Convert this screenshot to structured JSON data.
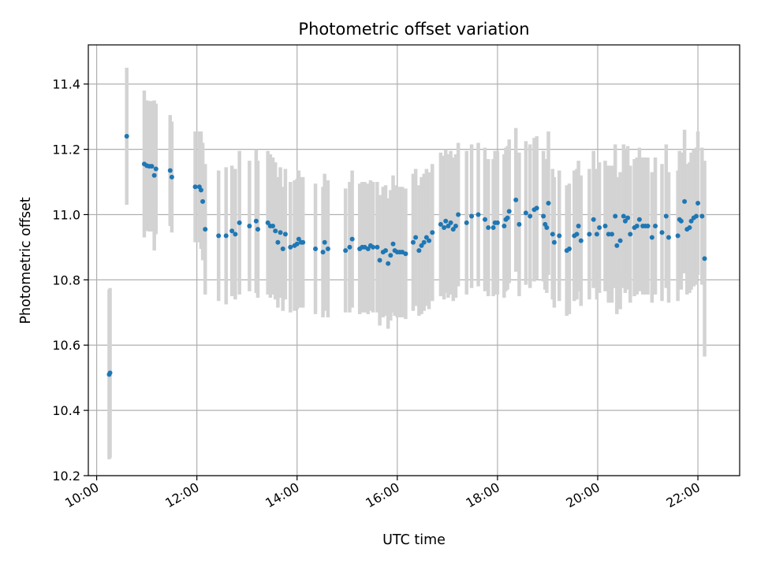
{
  "chart_data": {
    "type": "scatter",
    "title": "Photometric offset variation",
    "xlabel": "UTC time",
    "ylabel": "Photometric offset",
    "x_ticks": [
      "10:00",
      "12:00",
      "14:00",
      "16:00",
      "18:00",
      "20:00",
      "22:00"
    ],
    "y_ticks": [
      "10.2",
      "10.4",
      "10.6",
      "10.8",
      "11.0",
      "11.2",
      "11.4"
    ],
    "xlim": [
      "09:50",
      "22:50"
    ],
    "ylim": [
      10.2,
      11.52
    ],
    "grid": true,
    "marker_color": "#1f77b4",
    "errorbar_color": "#d3d3d3",
    "series": [
      {
        "points": [
          {
            "x": "10:15",
            "y": 10.51,
            "err": 0.26
          },
          {
            "x": "10:16",
            "y": 10.515,
            "err": 0.26
          },
          {
            "x": "10:36",
            "y": 11.24,
            "err": 0.21
          },
          {
            "x": "10:57",
            "y": 11.155,
            "err": 0.225
          },
          {
            "x": "11:00",
            "y": 11.15,
            "err": 0.2
          },
          {
            "x": "11:03",
            "y": 11.148,
            "err": 0.2
          },
          {
            "x": "11:06",
            "y": 11.148,
            "err": 0.2
          },
          {
            "x": "11:09",
            "y": 11.12,
            "err": 0.23
          },
          {
            "x": "11:11",
            "y": 11.14,
            "err": 0.2
          },
          {
            "x": "11:28",
            "y": 11.135,
            "err": 0.17
          },
          {
            "x": "11:30",
            "y": 11.115,
            "err": 0.17
          },
          {
            "x": "11:58",
            "y": 11.085,
            "err": 0.17
          },
          {
            "x": "12:03",
            "y": 11.085,
            "err": 0.17
          },
          {
            "x": "12:05",
            "y": 11.075,
            "err": 0.18
          },
          {
            "x": "12:07",
            "y": 11.04,
            "err": 0.18
          },
          {
            "x": "12:10",
            "y": 10.955,
            "err": 0.2
          },
          {
            "x": "12:26",
            "y": 10.935,
            "err": 0.2
          },
          {
            "x": "12:35",
            "y": 10.935,
            "err": 0.21
          },
          {
            "x": "12:42",
            "y": 10.95,
            "err": 0.2
          },
          {
            "x": "12:46",
            "y": 10.94,
            "err": 0.2
          },
          {
            "x": "12:51",
            "y": 10.975,
            "err": 0.22
          },
          {
            "x": "13:03",
            "y": 10.965,
            "err": 0.2
          },
          {
            "x": "13:11",
            "y": 10.98,
            "err": 0.22
          },
          {
            "x": "13:13",
            "y": 10.955,
            "err": 0.21
          },
          {
            "x": "13:25",
            "y": 10.975,
            "err": 0.22
          },
          {
            "x": "13:28",
            "y": 10.965,
            "err": 0.22
          },
          {
            "x": "13:31",
            "y": 10.965,
            "err": 0.21
          },
          {
            "x": "13:34",
            "y": 10.95,
            "err": 0.21
          },
          {
            "x": "13:37",
            "y": 10.915,
            "err": 0.2
          },
          {
            "x": "13:40",
            "y": 10.945,
            "err": 0.2
          },
          {
            "x": "13:43",
            "y": 10.895,
            "err": 0.19
          },
          {
            "x": "13:46",
            "y": 10.94,
            "err": 0.2
          },
          {
            "x": "13:52",
            "y": 10.9,
            "err": 0.2
          },
          {
            "x": "13:57",
            "y": 10.905,
            "err": 0.2
          },
          {
            "x": "14:00",
            "y": 10.91,
            "err": 0.2
          },
          {
            "x": "14:02",
            "y": 10.925,
            "err": 0.21
          },
          {
            "x": "14:05",
            "y": 10.915,
            "err": 0.2
          },
          {
            "x": "14:07",
            "y": 10.915,
            "err": 0.2
          },
          {
            "x": "14:22",
            "y": 10.895,
            "err": 0.2
          },
          {
            "x": "14:31",
            "y": 10.885,
            "err": 0.2
          },
          {
            "x": "14:33",
            "y": 10.915,
            "err": 0.21
          },
          {
            "x": "14:37",
            "y": 10.895,
            "err": 0.21
          },
          {
            "x": "14:58",
            "y": 10.89,
            "err": 0.19
          },
          {
            "x": "15:03",
            "y": 10.9,
            "err": 0.2
          },
          {
            "x": "15:06",
            "y": 10.925,
            "err": 0.21
          },
          {
            "x": "15:15",
            "y": 10.895,
            "err": 0.2
          },
          {
            "x": "15:18",
            "y": 10.9,
            "err": 0.2
          },
          {
            "x": "15:21",
            "y": 10.9,
            "err": 0.2
          },
          {
            "x": "15:25",
            "y": 10.895,
            "err": 0.2
          },
          {
            "x": "15:28",
            "y": 10.905,
            "err": 0.2
          },
          {
            "x": "15:31",
            "y": 10.9,
            "err": 0.2
          },
          {
            "x": "15:36",
            "y": 10.9,
            "err": 0.2
          },
          {
            "x": "15:39",
            "y": 10.86,
            "err": 0.2
          },
          {
            "x": "15:43",
            "y": 10.885,
            "err": 0.2
          },
          {
            "x": "15:46",
            "y": 10.89,
            "err": 0.2
          },
          {
            "x": "15:49",
            "y": 10.85,
            "err": 0.2
          },
          {
            "x": "15:52",
            "y": 10.875,
            "err": 0.2
          },
          {
            "x": "15:55",
            "y": 10.91,
            "err": 0.21
          },
          {
            "x": "15:57",
            "y": 10.89,
            "err": 0.2
          },
          {
            "x": "16:00",
            "y": 10.885,
            "err": 0.2
          },
          {
            "x": "16:03",
            "y": 10.885,
            "err": 0.2
          },
          {
            "x": "16:06",
            "y": 10.885,
            "err": 0.2
          },
          {
            "x": "16:10",
            "y": 10.88,
            "err": 0.2
          },
          {
            "x": "16:19",
            "y": 10.915,
            "err": 0.21
          },
          {
            "x": "16:22",
            "y": 10.93,
            "err": 0.21
          },
          {
            "x": "16:26",
            "y": 10.89,
            "err": 0.2
          },
          {
            "x": "16:29",
            "y": 10.905,
            "err": 0.21
          },
          {
            "x": "16:32",
            "y": 10.915,
            "err": 0.21
          },
          {
            "x": "16:35",
            "y": 10.93,
            "err": 0.21
          },
          {
            "x": "16:38",
            "y": 10.92,
            "err": 0.21
          },
          {
            "x": "16:42",
            "y": 10.945,
            "err": 0.21
          },
          {
            "x": "16:52",
            "y": 10.97,
            "err": 0.22
          },
          {
            "x": "16:56",
            "y": 10.96,
            "err": 0.22
          },
          {
            "x": "16:58",
            "y": 10.98,
            "err": 0.22
          },
          {
            "x": "17:01",
            "y": 10.965,
            "err": 0.22
          },
          {
            "x": "17:04",
            "y": 10.975,
            "err": 0.22
          },
          {
            "x": "17:07",
            "y": 10.955,
            "err": 0.22
          },
          {
            "x": "17:10",
            "y": 10.965,
            "err": 0.22
          },
          {
            "x": "17:13",
            "y": 11.0,
            "err": 0.22
          },
          {
            "x": "17:23",
            "y": 10.975,
            "err": 0.22
          },
          {
            "x": "17:29",
            "y": 10.995,
            "err": 0.22
          },
          {
            "x": "17:37",
            "y": 11.0,
            "err": 0.22
          },
          {
            "x": "17:45",
            "y": 10.985,
            "err": 0.22
          },
          {
            "x": "17:49",
            "y": 10.96,
            "err": 0.21
          },
          {
            "x": "17:55",
            "y": 10.96,
            "err": 0.21
          },
          {
            "x": "17:57",
            "y": 10.975,
            "err": 0.22
          },
          {
            "x": "18:00",
            "y": 10.975,
            "err": 0.22
          },
          {
            "x": "18:08",
            "y": 10.965,
            "err": 0.22
          },
          {
            "x": "18:10",
            "y": 10.985,
            "err": 0.22
          },
          {
            "x": "18:12",
            "y": 10.99,
            "err": 0.22
          },
          {
            "x": "18:14",
            "y": 11.01,
            "err": 0.22
          },
          {
            "x": "18:22",
            "y": 11.045,
            "err": 0.22
          },
          {
            "x": "18:26",
            "y": 10.97,
            "err": 0.22
          },
          {
            "x": "18:34",
            "y": 11.005,
            "err": 0.22
          },
          {
            "x": "18:39",
            "y": 10.995,
            "err": 0.22
          },
          {
            "x": "18:44",
            "y": 11.015,
            "err": 0.22
          },
          {
            "x": "18:47",
            "y": 11.02,
            "err": 0.22
          },
          {
            "x": "18:55",
            "y": 10.995,
            "err": 0.2
          },
          {
            "x": "18:57",
            "y": 10.97,
            "err": 0.2
          },
          {
            "x": "18:59",
            "y": 10.96,
            "err": 0.2
          },
          {
            "x": "19:01",
            "y": 11.035,
            "err": 0.22
          },
          {
            "x": "19:06",
            "y": 10.94,
            "err": 0.2
          },
          {
            "x": "19:08",
            "y": 10.915,
            "err": 0.2
          },
          {
            "x": "19:14",
            "y": 10.935,
            "err": 0.2
          },
          {
            "x": "19:23",
            "y": 10.89,
            "err": 0.2
          },
          {
            "x": "19:26",
            "y": 10.895,
            "err": 0.2
          },
          {
            "x": "19:32",
            "y": 10.935,
            "err": 0.2
          },
          {
            "x": "19:35",
            "y": 10.94,
            "err": 0.2
          },
          {
            "x": "19:37",
            "y": 10.965,
            "err": 0.2
          },
          {
            "x": "19:40",
            "y": 10.92,
            "err": 0.2
          },
          {
            "x": "19:50",
            "y": 10.94,
            "err": 0.2
          },
          {
            "x": "19:55",
            "y": 10.985,
            "err": 0.21
          },
          {
            "x": "19:59",
            "y": 10.94,
            "err": 0.2
          },
          {
            "x": "20:02",
            "y": 10.96,
            "err": 0.2
          },
          {
            "x": "20:09",
            "y": 10.965,
            "err": 0.2
          },
          {
            "x": "20:13",
            "y": 10.94,
            "err": 0.21
          },
          {
            "x": "20:17",
            "y": 10.94,
            "err": 0.21
          },
          {
            "x": "20:21",
            "y": 10.995,
            "err": 0.22
          },
          {
            "x": "20:23",
            "y": 10.905,
            "err": 0.21
          },
          {
            "x": "20:27",
            "y": 10.92,
            "err": 0.21
          },
          {
            "x": "20:31",
            "y": 10.995,
            "err": 0.22
          },
          {
            "x": "20:33",
            "y": 10.98,
            "err": 0.22
          },
          {
            "x": "20:36",
            "y": 10.99,
            "err": 0.22
          },
          {
            "x": "20:39",
            "y": 10.94,
            "err": 0.21
          },
          {
            "x": "20:44",
            "y": 10.96,
            "err": 0.21
          },
          {
            "x": "20:47",
            "y": 10.965,
            "err": 0.21
          },
          {
            "x": "20:50",
            "y": 10.985,
            "err": 0.22
          },
          {
            "x": "20:54",
            "y": 10.965,
            "err": 0.21
          },
          {
            "x": "20:57",
            "y": 10.965,
            "err": 0.21
          },
          {
            "x": "21:00",
            "y": 10.965,
            "err": 0.21
          },
          {
            "x": "21:05",
            "y": 10.93,
            "err": 0.2
          },
          {
            "x": "21:09",
            "y": 10.965,
            "err": 0.21
          },
          {
            "x": "21:17",
            "y": 10.945,
            "err": 0.21
          },
          {
            "x": "21:22",
            "y": 10.995,
            "err": 0.22
          },
          {
            "x": "21:25",
            "y": 10.93,
            "err": 0.2
          },
          {
            "x": "21:36",
            "y": 10.935,
            "err": 0.2
          },
          {
            "x": "21:38",
            "y": 10.985,
            "err": 0.21
          },
          {
            "x": "21:40",
            "y": 10.98,
            "err": 0.21
          },
          {
            "x": "21:44",
            "y": 11.04,
            "err": 0.22
          },
          {
            "x": "21:47",
            "y": 10.955,
            "err": 0.2
          },
          {
            "x": "21:50",
            "y": 10.96,
            "err": 0.2
          },
          {
            "x": "21:52",
            "y": 10.98,
            "err": 0.21
          },
          {
            "x": "21:55",
            "y": 10.99,
            "err": 0.21
          },
          {
            "x": "21:58",
            "y": 10.995,
            "err": 0.21
          },
          {
            "x": "22:00",
            "y": 11.035,
            "err": 0.22
          },
          {
            "x": "22:05",
            "y": 10.995,
            "err": 0.21
          },
          {
            "x": "22:08",
            "y": 10.865,
            "err": 0.3
          }
        ]
      }
    ]
  }
}
